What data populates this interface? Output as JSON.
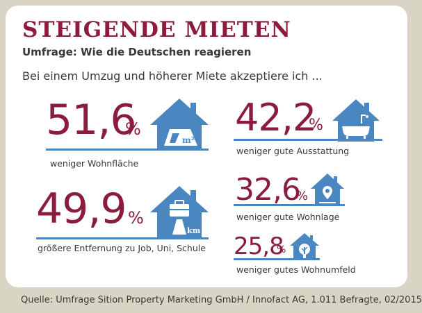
{
  "title": "STEIGENDE MIETEN",
  "subtitle": "Umfrage: Wie die Deutschen reagieren",
  "lead": "Bei einem Umzug und höherer Miete akzeptiere ich ...",
  "percent_sign": "%",
  "items": [
    {
      "value": "51,6",
      "label": "weniger Wohnfläche",
      "icon": "house-floorplan-icon",
      "icon_text": "m²"
    },
    {
      "value": "42,2",
      "label": "weniger gute Ausstattung",
      "icon": "house-bathtub-icon"
    },
    {
      "value": "49,9",
      "label": "größere Entfernung zu Job, Uni, Schule",
      "icon": "house-briefcase-road-icon",
      "icon_text": "km"
    },
    {
      "value": "32,6",
      "label": "weniger gute Wohnlage",
      "icon": "house-location-pin-icon"
    },
    {
      "value": "25,8",
      "label": "weniger gutes Wohnumfeld",
      "icon": "house-tree-icon"
    }
  ],
  "source": "Quelle: Umfrage Sition Property Marketing GmbH / Innofact AG, 1.011 Befragte, 02/2015",
  "colors": {
    "accent": "#8c1c3c",
    "icon_blue": "#4a86c0",
    "background": "#d9d5c4",
    "text": "#3a3836"
  }
}
